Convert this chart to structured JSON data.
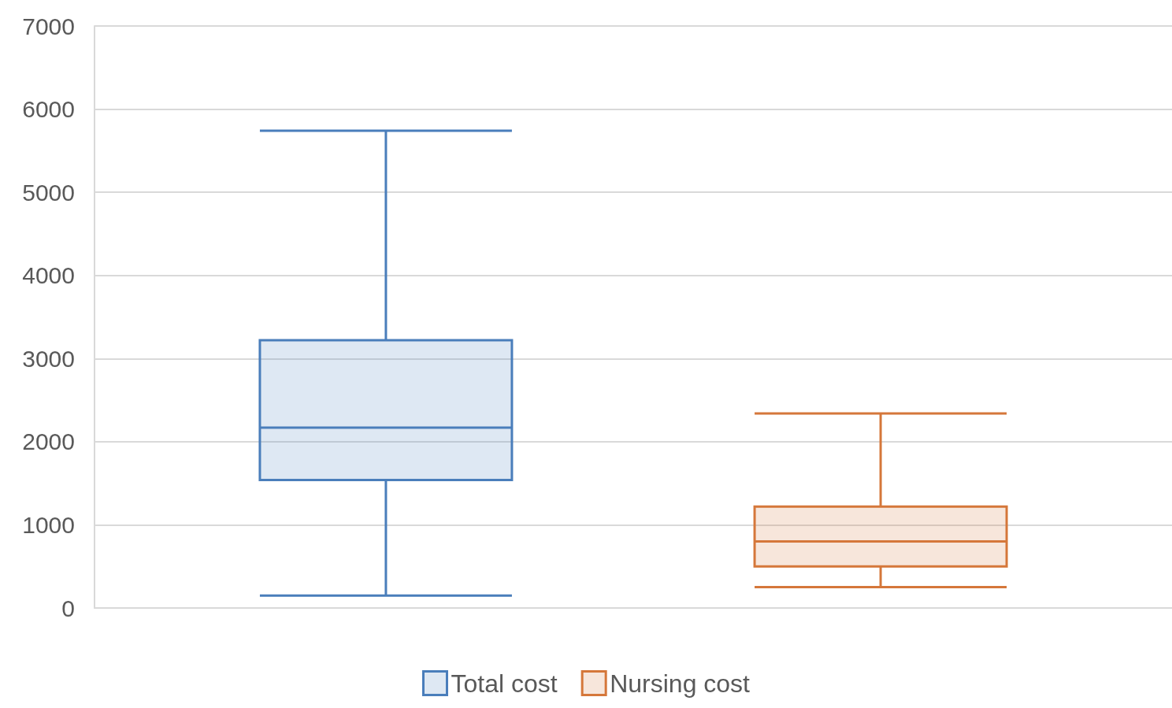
{
  "chart_data": {
    "type": "box",
    "categories": [
      null
    ],
    "series": [
      {
        "name": "Total cost",
        "color": "#4a7ebb",
        "boxes": [
          {
            "low": 150,
            "q1": 1540,
            "median": 2170,
            "q3": 3220,
            "high": 5740
          }
        ]
      },
      {
        "name": "Nursing cost",
        "color": "#d5773a",
        "boxes": [
          {
            "low": 250,
            "q1": 500,
            "median": 800,
            "q3": 1220,
            "high": 2340
          }
        ]
      }
    ],
    "ylim": [
      0,
      7000
    ],
    "yticks": [
      0,
      1000,
      2000,
      3000,
      4000,
      5000,
      6000,
      7000
    ],
    "grid": "y",
    "legend": "bottom"
  }
}
